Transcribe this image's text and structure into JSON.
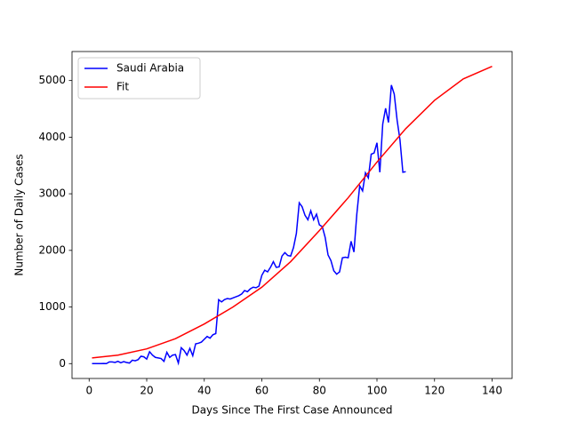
{
  "chart_data": {
    "type": "line",
    "xlabel": "Days Since The First Case Announced",
    "ylabel": "Number of Daily Cases",
    "xlim": [
      -5.95,
      146.95
    ],
    "ylim": [
      -262.5,
      5512.5
    ],
    "xticks": [
      0,
      20,
      40,
      60,
      80,
      100,
      120,
      140
    ],
    "yticks": [
      0,
      1000,
      2000,
      3000,
      4000,
      5000
    ],
    "legend": "upper left",
    "series": [
      {
        "name": "Saudi Arabia",
        "color": "#0000ff",
        "x": [
          1,
          2,
          3,
          4,
          5,
          6,
          7,
          8,
          9,
          10,
          11,
          12,
          13,
          14,
          15,
          16,
          17,
          18,
          19,
          20,
          21,
          22,
          23,
          24,
          25,
          26,
          27,
          28,
          29,
          30,
          31,
          32,
          33,
          34,
          35,
          36,
          37,
          38,
          39,
          40,
          41,
          42,
          43,
          44,
          45,
          46,
          47,
          48,
          49,
          50,
          51,
          52,
          53,
          54,
          55,
          56,
          57,
          58,
          59,
          60,
          61,
          62,
          63,
          64,
          65,
          66,
          67,
          68,
          69,
          70,
          71,
          72,
          73,
          74,
          75,
          76,
          77,
          78,
          79,
          80,
          81,
          82,
          83,
          84,
          85,
          86,
          87,
          88,
          89,
          90,
          91,
          92,
          93,
          94,
          95,
          96,
          97,
          98,
          99,
          100,
          101,
          102,
          103,
          104,
          105,
          106,
          107,
          108,
          109,
          110
        ],
        "values": [
          1,
          0,
          1,
          1,
          2,
          0,
          30,
          30,
          20,
          40,
          15,
          35,
          20,
          10,
          60,
          50,
          70,
          130,
          120,
          80,
          210,
          150,
          110,
          100,
          90,
          40,
          200,
          110,
          150,
          160,
          10,
          280,
          230,
          150,
          270,
          140,
          350,
          360,
          380,
          430,
          480,
          450,
          510,
          530,
          1130,
          1090,
          1130,
          1150,
          1140,
          1160,
          1180,
          1200,
          1230,
          1290,
          1270,
          1320,
          1350,
          1340,
          1370,
          1560,
          1650,
          1620,
          1700,
          1800,
          1700,
          1710,
          1900,
          1960,
          1910,
          1900,
          2050,
          2300,
          2840,
          2770,
          2620,
          2540,
          2700,
          2540,
          2640,
          2450,
          2420,
          2230,
          1920,
          1820,
          1640,
          1580,
          1620,
          1870,
          1880,
          1870,
          2160,
          1970,
          2640,
          3140,
          3050,
          3370,
          3280,
          3700,
          3720,
          3900,
          3380,
          4230,
          4510,
          4260,
          4920,
          4760,
          4300,
          3950,
          3380,
          3390
        ]
      },
      {
        "name": "Fit",
        "color": "#ff0000",
        "x": [
          1,
          10,
          20,
          30,
          40,
          50,
          60,
          70,
          80,
          90,
          100,
          110,
          120,
          130,
          140
        ],
        "values": [
          100,
          150,
          260,
          440,
          700,
          1000,
          1350,
          1800,
          2350,
          2930,
          3560,
          4150,
          4650,
          5030,
          5250
        ]
      }
    ]
  }
}
